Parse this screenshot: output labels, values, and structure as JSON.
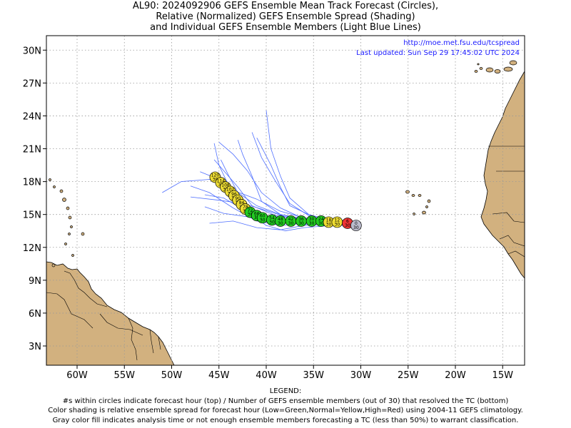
{
  "title": {
    "line1": "AL90: 2024092906 GEFS Ensemble Mean Track Forecast (Circles),",
    "line2": "Relative (Normalized) GEFS Ensemble Spread (Shading)",
    "line3": "and Individual GEFS Ensemble Members (Light Blue Lines)"
  },
  "source": {
    "url": "http://moe.met.fsu.edu/tcspread",
    "updated": "Last updated: Sun Sep 29 17:45:02 UTC 2024"
  },
  "axes": {
    "lat_labels": [
      "30N",
      "27N",
      "24N",
      "21N",
      "18N",
      "15N",
      "12N",
      "9N",
      "6N",
      "3N"
    ],
    "lon_labels": [
      "60W",
      "55W",
      "50W",
      "45W",
      "40W",
      "35W",
      "30W",
      "25W",
      "20W",
      "15W"
    ]
  },
  "legend": {
    "heading": "LEGEND:",
    "line1": "#s within circles indicate forecast hour (top) / Number of GEFS ensemble members (out of 30) that resolved the TC (bottom)",
    "line2": "Color shading is relative ensemble spread for forecast hour (Low=Green,Normal=Yellow,High=Red) using 2004-11 GEFS climatology.",
    "line3": "Gray color fill indicates analysis time or not enough ensemble members forecasting a TC (less than 50%) to warrant classification."
  },
  "colors": {
    "land": "#d2b17f",
    "member_track": "#4f6fff",
    "low_spread": "#22cc22",
    "normal_spread": "#eedd33",
    "high_spread": "#ee3333",
    "analysis": "#bbbbcc",
    "grid": "#999999"
  },
  "forecast_points": [
    {
      "lon": -30.5,
      "lat": 14.0,
      "hour": "0",
      "members": "30",
      "spread": "analysis"
    },
    {
      "lon": -31.4,
      "lat": 14.2,
      "hour": "6",
      "members": "30",
      "spread": "high"
    },
    {
      "lon": -32.5,
      "lat": 14.3,
      "hour": "12",
      "members": "30",
      "spread": "normal"
    },
    {
      "lon": -33.4,
      "lat": 14.3,
      "hour": "18",
      "members": "30",
      "spread": "normal"
    },
    {
      "lon": -34.2,
      "lat": 14.4,
      "hour": "24",
      "members": "30",
      "spread": "low"
    },
    {
      "lon": -35.2,
      "lat": 14.4,
      "hour": "30",
      "members": "30",
      "spread": "low"
    },
    {
      "lon": -36.3,
      "lat": 14.4,
      "hour": "36",
      "members": "30",
      "spread": "low"
    },
    {
      "lon": -37.4,
      "lat": 14.4,
      "hour": "42",
      "members": "30",
      "spread": "low"
    },
    {
      "lon": -38.5,
      "lat": 14.4,
      "hour": "48",
      "members": "30",
      "spread": "low"
    },
    {
      "lon": -39.4,
      "lat": 14.5,
      "hour": "54",
      "members": "30",
      "spread": "low"
    },
    {
      "lon": -40.4,
      "lat": 14.7,
      "hour": "60",
      "members": "30",
      "spread": "low"
    },
    {
      "lon": -41.0,
      "lat": 14.9,
      "hour": "66",
      "members": "30",
      "spread": "low"
    },
    {
      "lon": -41.7,
      "lat": 15.2,
      "hour": "72",
      "members": "30",
      "spread": "low"
    },
    {
      "lon": -42.2,
      "lat": 15.5,
      "hour": "78",
      "members": "30",
      "spread": "normal"
    },
    {
      "lon": -42.6,
      "lat": 15.9,
      "hour": "84",
      "members": "30",
      "spread": "normal"
    },
    {
      "lon": -43.0,
      "lat": 16.3,
      "hour": "90",
      "members": "30",
      "spread": "normal"
    },
    {
      "lon": -43.4,
      "lat": 16.7,
      "hour": "96",
      "members": "30",
      "spread": "normal"
    },
    {
      "lon": -43.8,
      "lat": 17.1,
      "hour": "102",
      "members": "30",
      "spread": "normal"
    },
    {
      "lon": -44.3,
      "lat": 17.5,
      "hour": "108",
      "members": "30",
      "spread": "normal"
    },
    {
      "lon": -44.8,
      "lat": 17.9,
      "hour": "114",
      "members": "30",
      "spread": "normal"
    },
    {
      "lon": -45.4,
      "lat": 18.4,
      "hour": "120",
      "members": "30",
      "spread": "normal"
    }
  ],
  "member_tracks": [
    [
      [
        -30.5,
        14.0
      ],
      [
        -33,
        14.1
      ],
      [
        -36,
        14.2
      ],
      [
        -38.5,
        14.0
      ],
      [
        -41,
        14.4
      ],
      [
        -43.5,
        15.6
      ],
      [
        -46,
        17.0
      ],
      [
        -48,
        17.6
      ]
    ],
    [
      [
        -30.5,
        14.0
      ],
      [
        -33,
        14.2
      ],
      [
        -36,
        14.4
      ],
      [
        -39,
        14.6
      ],
      [
        -41,
        15.2
      ],
      [
        -43,
        16.4
      ],
      [
        -45,
        18.2
      ],
      [
        -47,
        18.9
      ]
    ],
    [
      [
        -30.5,
        14.0
      ],
      [
        -33,
        14.3
      ],
      [
        -36,
        14.5
      ],
      [
        -39,
        14.9
      ],
      [
        -41.5,
        15.8
      ],
      [
        -43,
        17.5
      ],
      [
        -44.5,
        19.0
      ],
      [
        -45.5,
        20.0
      ]
    ],
    [
      [
        -30.5,
        14.0
      ],
      [
        -33,
        14.4
      ],
      [
        -35.5,
        15.0
      ],
      [
        -37.5,
        16.5
      ],
      [
        -38.5,
        18.5
      ],
      [
        -39.5,
        21.0
      ],
      [
        -40,
        24.5
      ]
    ],
    [
      [
        -30.5,
        14.0
      ],
      [
        -33,
        14.3
      ],
      [
        -35.5,
        14.9
      ],
      [
        -37.5,
        16.0
      ],
      [
        -39,
        18.0
      ],
      [
        -40.5,
        20.2
      ],
      [
        -41.5,
        22.5
      ]
    ],
    [
      [
        -30.5,
        14.0
      ],
      [
        -33,
        14.2
      ],
      [
        -36,
        14.5
      ],
      [
        -38.5,
        15.0
      ],
      [
        -40.5,
        16.2
      ],
      [
        -41.5,
        18.5
      ],
      [
        -42.5,
        20.5
      ],
      [
        -43,
        21.8
      ]
    ],
    [
      [
        -30.5,
        14.0
      ],
      [
        -33,
        14.1
      ],
      [
        -36,
        14.0
      ],
      [
        -38.5,
        13.6
      ],
      [
        -41,
        13.8
      ],
      [
        -43.5,
        14.4
      ],
      [
        -46,
        14.2
      ]
    ],
    [
      [
        -30.5,
        14.0
      ],
      [
        -33,
        14.2
      ],
      [
        -36,
        14.1
      ],
      [
        -39,
        14.3
      ],
      [
        -42,
        14.8
      ],
      [
        -44.5,
        15.1
      ],
      [
        -46.5,
        15.7
      ]
    ],
    [
      [
        -30.5,
        14.0
      ],
      [
        -33,
        14.2
      ],
      [
        -36,
        14.5
      ],
      [
        -38,
        14.8
      ],
      [
        -40.5,
        15.5
      ],
      [
        -42.5,
        16.0
      ],
      [
        -45,
        16.3
      ],
      [
        -48,
        16.6
      ]
    ],
    [
      [
        -30.5,
        14.0
      ],
      [
        -33,
        14.3
      ],
      [
        -36,
        14.7
      ],
      [
        -38.5,
        15.3
      ],
      [
        -41,
        16.4
      ],
      [
        -43.5,
        17.2
      ],
      [
        -46,
        18.2
      ],
      [
        -49,
        18.0
      ],
      [
        -51,
        17.0
      ]
    ],
    [
      [
        -30.5,
        14.0
      ],
      [
        -33,
        14.3
      ],
      [
        -36,
        14.6
      ],
      [
        -38.5,
        15.6
      ],
      [
        -40.5,
        17.0
      ],
      [
        -42,
        19.0
      ],
      [
        -43.5,
        20.5
      ],
      [
        -45,
        21.6
      ]
    ],
    [
      [
        -30.5,
        14.0
      ],
      [
        -33,
        14.0
      ],
      [
        -36,
        13.8
      ],
      [
        -38,
        13.5
      ],
      [
        -40,
        14.0
      ],
      [
        -42.5,
        15.5
      ],
      [
        -44.5,
        16.5
      ],
      [
        -46.5,
        16.8
      ]
    ],
    [
      [
        -30.5,
        14.0
      ],
      [
        -33,
        14.3
      ],
      [
        -36,
        14.6
      ],
      [
        -38.5,
        15.0
      ],
      [
        -41,
        15.8
      ],
      [
        -43,
        17.0
      ],
      [
        -44,
        18.6
      ],
      [
        -44.8,
        20.0
      ]
    ],
    [
      [
        -30.5,
        14.0
      ],
      [
        -33,
        14.2
      ],
      [
        -36,
        14.3
      ],
      [
        -39,
        14.3
      ],
      [
        -41.5,
        15.2
      ],
      [
        -43.5,
        16.8
      ],
      [
        -45,
        19.5
      ],
      [
        -45.5,
        21.5
      ]
    ],
    [
      [
        -30.5,
        14.0
      ],
      [
        -33,
        14.4
      ],
      [
        -35.5,
        15.0
      ],
      [
        -37.5,
        15.8
      ],
      [
        -38.5,
        17.5
      ],
      [
        -39.5,
        19.5
      ],
      [
        -41,
        22.0
      ]
    ]
  ]
}
